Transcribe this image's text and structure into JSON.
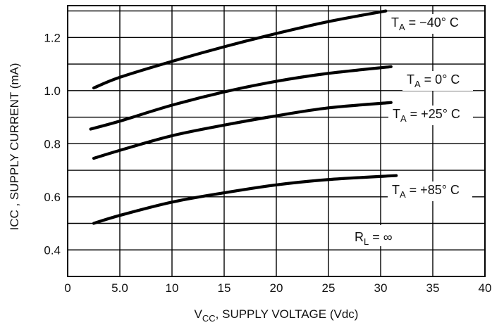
{
  "chart_data": {
    "type": "line",
    "xlabel_main": "V",
    "xlabel_sub": "CC",
    "xlabel_rest": ", SUPPLY VOLTAGE (Vdc)",
    "ylabel": "ICC , SUPPLY CURRENT (mA)",
    "xlim": [
      0,
      40
    ],
    "ylim": [
      0.3,
      1.32
    ],
    "x_ticks": [
      0,
      5,
      10,
      15,
      20,
      25,
      30,
      35,
      40
    ],
    "x_tick_labels": [
      "0",
      "5.0",
      "10",
      "15",
      "20",
      "25",
      "30",
      "35",
      "40"
    ],
    "y_ticks": [
      0.4,
      0.6,
      0.8,
      1.0,
      1.2
    ],
    "y_tick_labels": [
      "0.4",
      "0.6",
      "0.8",
      "1.0",
      "1.2"
    ],
    "grid": true,
    "series": [
      {
        "label_main": "T",
        "label_sub": "A",
        "label_rest": " = −40° C",
        "x": [
          2.5,
          5,
          10,
          15,
          20,
          25,
          30.5
        ],
        "y": [
          1.01,
          1.05,
          1.11,
          1.165,
          1.215,
          1.26,
          1.3
        ]
      },
      {
        "label_main": "T",
        "label_sub": "A",
        "label_rest": " =  0° C",
        "x": [
          2.2,
          5,
          10,
          15,
          20,
          25,
          31
        ],
        "y": [
          0.855,
          0.885,
          0.945,
          0.995,
          1.035,
          1.065,
          1.09
        ]
      },
      {
        "label_main": "T",
        "label_sub": "A",
        "label_rest": " = +25° C",
        "x": [
          2.5,
          5,
          10,
          15,
          20,
          25,
          31
        ],
        "y": [
          0.745,
          0.775,
          0.83,
          0.87,
          0.905,
          0.935,
          0.955
        ]
      },
      {
        "label_main": "T",
        "label_sub": "A",
        "label_rest": " = +85° C",
        "x": [
          2.5,
          5,
          10,
          15,
          20,
          25,
          31.5
        ],
        "y": [
          0.5,
          0.53,
          0.58,
          0.615,
          0.645,
          0.665,
          0.68
        ]
      }
    ],
    "annotation": {
      "label_main": "R",
      "label_sub": "L",
      "label_rest": " = ∞"
    }
  }
}
